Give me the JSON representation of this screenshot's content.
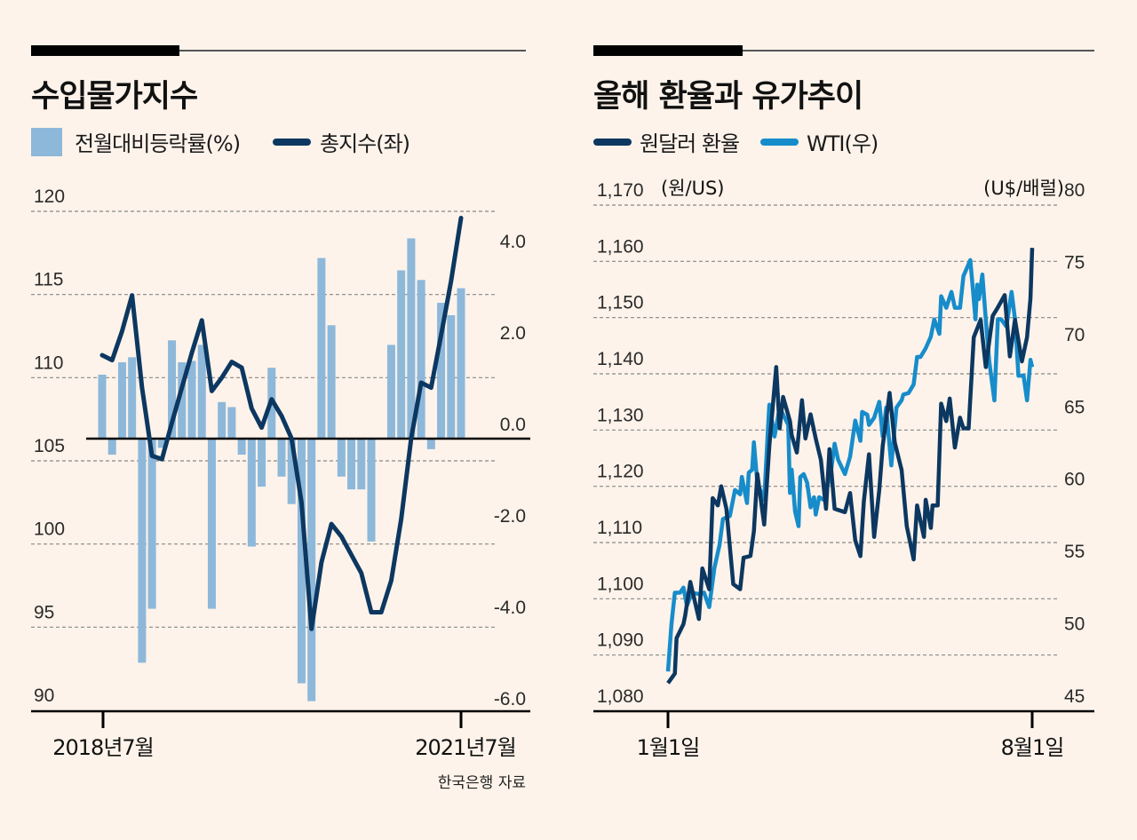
{
  "colors": {
    "background": "#fdf3ea",
    "bar": "#8db8da",
    "index_line": "#0c3760",
    "won_line": "#0c3760",
    "wti_line": "#178ccb"
  },
  "left": {
    "title": "수입물가지수",
    "legend": [
      {
        "label": "전월대비등락률(%)",
        "icon": "bar-swatch"
      },
      {
        "label": "총지수(좌)",
        "icon": "line-swatch"
      }
    ],
    "source": "한국은행 자료"
  },
  "right": {
    "title": "올해 환율과 유가추이",
    "legend": [
      {
        "label": "원달러 환율",
        "icon": "line-swatch"
      },
      {
        "label": "WTI(우)",
        "icon": "line-swatch"
      }
    ],
    "left_unit": "(원/US)",
    "right_unit": "(U$/배럴)"
  },
  "chart_data": [
    {
      "type": "bar+line",
      "title": "수입물가지수",
      "x_labels": [
        "2018년7월",
        "2021년7월"
      ],
      "x_range": [
        "2018-07",
        "2021-07"
      ],
      "left_axis": {
        "ticks": [
          "120",
          "115",
          "110",
          "105",
          "100",
          "95",
          "90"
        ],
        "range": [
          90,
          120
        ]
      },
      "right_axis": {
        "ticks": [
          "4.0",
          "2.0",
          "0.0",
          "-2.0",
          "-4.0",
          "-6.0"
        ],
        "range": [
          -6,
          4
        ]
      },
      "grid": true,
      "legend_position": "top-left",
      "series": [
        {
          "name": "전월대비등락률(%)",
          "axis": "right",
          "type": "bar",
          "values": [
            1.4,
            -0.35,
            1.67,
            1.78,
            -4.9,
            -3.72,
            -0.2,
            2.15,
            1.67,
            1.7,
            2.05,
            -3.72,
            0.8,
            0.69,
            -0.35,
            -2.36,
            -1.05,
            1.55,
            -0.83,
            -1.43,
            -5.35,
            -5.74,
            3.95,
            2.48,
            -0.83,
            -1.11,
            -1.11,
            -2.25,
            0,
            2.05,
            3.68,
            4.38,
            3.47,
            -0.23,
            2.97,
            2.7,
            3.29
          ]
        },
        {
          "name": "총지수(좌)",
          "axis": "left",
          "type": "line",
          "values": [
            111.35,
            111.05,
            112.8,
            114.95,
            109.4,
            105.3,
            105.1,
            107.3,
            109.4,
            111.5,
            113.45,
            109.2,
            110.0,
            110.95,
            110.6,
            108.15,
            107.0,
            108.7,
            107.7,
            106.35,
            102.5,
            94.9,
            98.9,
            101.2,
            100.45,
            99.35,
            98.25,
            95.9,
            95.9,
            97.8,
            101.5,
            106.35,
            109.7,
            109.4,
            112.55,
            115.8,
            119.6
          ]
        }
      ]
    },
    {
      "type": "line",
      "title": "올해 환율과 유가추이",
      "x_labels": [
        "1월1일",
        "8월1일"
      ],
      "x_range": [
        "01-01",
        "08-01"
      ],
      "left_axis": {
        "ticks": [
          "1,170",
          "1,160",
          "1,150",
          "1,140",
          "1,130",
          "1,120",
          "1,110",
          "1,100",
          "1,090",
          "1,080"
        ],
        "range": [
          1080,
          1170
        ],
        "unit": "(원/US)"
      },
      "right_axis": {
        "ticks": [
          "80",
          "75",
          "70",
          "65",
          "60",
          "55",
          "50",
          "45"
        ],
        "range": [
          45,
          80
        ],
        "unit": "(U$/배럴)"
      },
      "grid": true,
      "legend_position": "top-left",
      "series": [
        {
          "name": "원달러 환율",
          "axis": "left",
          "x": [
            "01-01",
            "01-05",
            "01-06",
            "01-10",
            "01-11",
            "01-14",
            "01-19",
            "01-21",
            "01-25",
            "01-27",
            "01-30",
            "02-01",
            "02-04",
            "02-08",
            "02-12",
            "02-14",
            "02-18",
            "02-20",
            "02-22",
            "02-26",
            "03-01",
            "03-05",
            "03-07",
            "03-09",
            "03-13",
            "03-14",
            "03-17",
            "03-20",
            "03-22",
            "03-25",
            "03-28",
            "03-31",
            "04-03",
            "04-05",
            "04-08",
            "04-14",
            "04-17",
            "04-20",
            "04-23",
            "04-25",
            "04-28",
            "05-01",
            "05-04",
            "05-06",
            "05-10",
            "05-13",
            "05-17",
            "05-20",
            "05-24",
            "05-26",
            "05-30",
            "05-31",
            "06-03",
            "06-04",
            "06-07",
            "06-09",
            "06-12",
            "06-14",
            "06-17",
            "06-20",
            "06-22",
            "06-25",
            "06-28",
            "07-02",
            "07-05",
            "07-09",
            "07-12",
            "07-16",
            "07-19",
            "07-22",
            "07-26",
            "07-29",
            "07-31",
            "08-01"
          ],
          "y": [
            1085,
            1086.7,
            1093,
            1095.5,
            1097,
            1103,
            1096.4,
            1105.4,
            1101.7,
            1117.9,
            1116.6,
            1120,
            1116,
            1102.6,
            1101.7,
            1107.3,
            1107.6,
            1112,
            1122.2,
            1113.2,
            1127.2,
            1141.2,
            1130.3,
            1135.9,
            1131.6,
            1129.1,
            1126,
            1135.3,
            1128.5,
            1132.8,
            1128.5,
            1124.7,
            1116,
            1126.6,
            1116,
            1115.4,
            1118.8,
            1110.4,
            1107.6,
            1117.3,
            1125.7,
            1111,
            1119.4,
            1127.2,
            1136.6,
            1127.8,
            1122.9,
            1112.9,
            1107,
            1116.6,
            1111,
            1117.6,
            1112.6,
            1116.6,
            1116.6,
            1134.7,
            1131.6,
            1135.6,
            1126.9,
            1132.2,
            1130.3,
            1130.3,
            1146.5,
            1149.6,
            1141.2,
            1150.3,
            1151.8,
            1154,
            1143.1,
            1149.6,
            1142.2,
            1146.5,
            1153.4,
            1162.4
          ]
        },
        {
          "name": "WTI(우)",
          "axis": "right",
          "x": [
            "01-01",
            "01-03",
            "01-05",
            "01-08",
            "01-10",
            "01-12",
            "01-15",
            "01-19",
            "01-22",
            "01-25",
            "01-28",
            "01-31",
            "02-02",
            "02-06",
            "02-09",
            "02-12",
            "02-13",
            "02-16",
            "02-17",
            "02-19",
            "02-20",
            "02-22",
            "02-26",
            "02-28",
            "03-01",
            "03-04",
            "03-07",
            "03-12",
            "03-13",
            "03-14",
            "03-16",
            "03-18",
            "03-19",
            "03-21",
            "03-23",
            "03-25",
            "03-27",
            "03-28",
            "03-30",
            "04-02",
            "04-06",
            "04-08",
            "04-10",
            "04-14",
            "04-17",
            "04-20",
            "04-23",
            "04-24",
            "04-27",
            "04-28",
            "05-01",
            "05-04",
            "05-06",
            "05-08",
            "05-11",
            "05-14",
            "05-17",
            "05-18",
            "05-21",
            "05-24",
            "05-26",
            "05-28",
            "05-31",
            "06-03",
            "06-05",
            "06-08",
            "06-09",
            "06-12",
            "06-15",
            "06-17",
            "06-20",
            "06-22",
            "06-26",
            "06-29",
            "06-30",
            "07-01",
            "07-03",
            "07-05",
            "07-07",
            "07-10",
            "07-12",
            "07-14",
            "07-17",
            "07-20",
            "07-22",
            "07-24",
            "07-27",
            "07-29",
            "07-31",
            "08-01"
          ],
          "y": [
            47.75,
            51.0,
            53.2,
            53.2,
            53.55,
            52.3,
            53.2,
            53.1,
            53.2,
            52.2,
            54.9,
            56.5,
            58.3,
            58.5,
            60.3,
            60.0,
            61.2,
            59.4,
            61.5,
            61.7,
            63.6,
            60.8,
            59.6,
            64.1,
            66.2,
            64.0,
            66.0,
            64.8,
            60.1,
            61.7,
            58.8,
            57.8,
            61.2,
            61.4,
            60.8,
            59.1,
            59.8,
            58.6,
            59.8,
            59.6,
            61.7,
            63.5,
            62.4,
            61.4,
            62.6,
            65.1,
            63.7,
            65.7,
            65.5,
            64.8,
            65.3,
            66.4,
            64.0,
            66.0,
            62.0,
            66.0,
            66.5,
            66.9,
            67.0,
            67.6,
            69.5,
            69.5,
            70.1,
            70.9,
            72.1,
            71.1,
            73.7,
            72.9,
            74.0,
            72.9,
            72.9,
            75.1,
            76.2,
            72.1,
            74.5,
            73.5,
            75.2,
            72.1,
            69.2,
            66.5,
            72.1,
            72.1,
            71.6,
            74.0,
            72.1,
            68.2,
            68.2,
            66.5,
            69.3,
            68.8
          ]
        }
      ]
    }
  ]
}
